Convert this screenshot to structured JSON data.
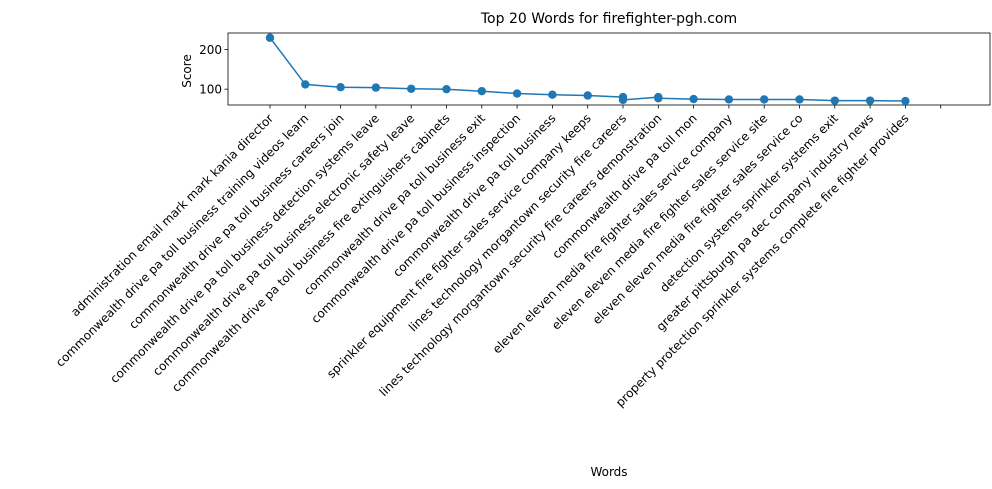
{
  "chart_data": {
    "type": "line",
    "title": "Top 20 Words for firefighter-pgh.com",
    "xlabel": "Words",
    "ylabel": "Score",
    "ylim": [
      60,
      242
    ],
    "yticks": [
      100,
      200
    ],
    "grid": false,
    "color": "#1f77b4",
    "categories": [
      "administration email mark mark kania director",
      "commonwealth drive pa toll business training videos learn",
      "commonwealth drive pa toll business careers join",
      "commonwealth drive pa toll business detection systems leave",
      "commonwealth drive pa toll business electronic safety leave",
      "commonwealth drive pa toll business fire extinguishers cabinets",
      "commonwealth drive pa toll business exit",
      "commonwealth drive pa toll business inspection",
      "commonwealth drive pa toll business",
      "sprinkler equipment fire fighter sales service company keeps",
      "lines technology morgantown security fire careers",
      "lines technology morgantown security fire careers demonstration",
      "commonwealth drive pa toll mon",
      "eleven eleven media fire fighter sales service company",
      "eleven eleven media fire fighter sales service site",
      "eleven eleven media fire fighter sales service co",
      "detection systems sprinkler systems exit",
      "greater pittsburgh pa dec company industry news",
      "property protection sprinkler systems complete fire fighter provides",
      ""
    ],
    "series": [
      {
        "points": [
          {
            "x": 0,
            "y": 230
          },
          {
            "x": 1,
            "y": 112
          },
          {
            "x": 2,
            "y": 105
          },
          {
            "x": 3,
            "y": 104
          },
          {
            "x": 4,
            "y": 101
          },
          {
            "x": 5,
            "y": 100
          },
          {
            "x": 6,
            "y": 95
          },
          {
            "x": 7,
            "y": 89
          },
          {
            "x": 8,
            "y": 86
          },
          {
            "x": 9,
            "y": 84
          },
          {
            "x": 10,
            "y": 80
          },
          {
            "x": 10,
            "y": 73
          },
          {
            "x": 11,
            "y": 80
          },
          {
            "x": 11,
            "y": 77
          },
          {
            "x": 12,
            "y": 75
          },
          {
            "x": 13,
            "y": 74
          },
          {
            "x": 14,
            "y": 74
          },
          {
            "x": 15,
            "y": 74
          },
          {
            "x": 16,
            "y": 71
          },
          {
            "x": 17,
            "y": 71
          },
          {
            "x": 18,
            "y": 70
          }
        ]
      }
    ]
  }
}
